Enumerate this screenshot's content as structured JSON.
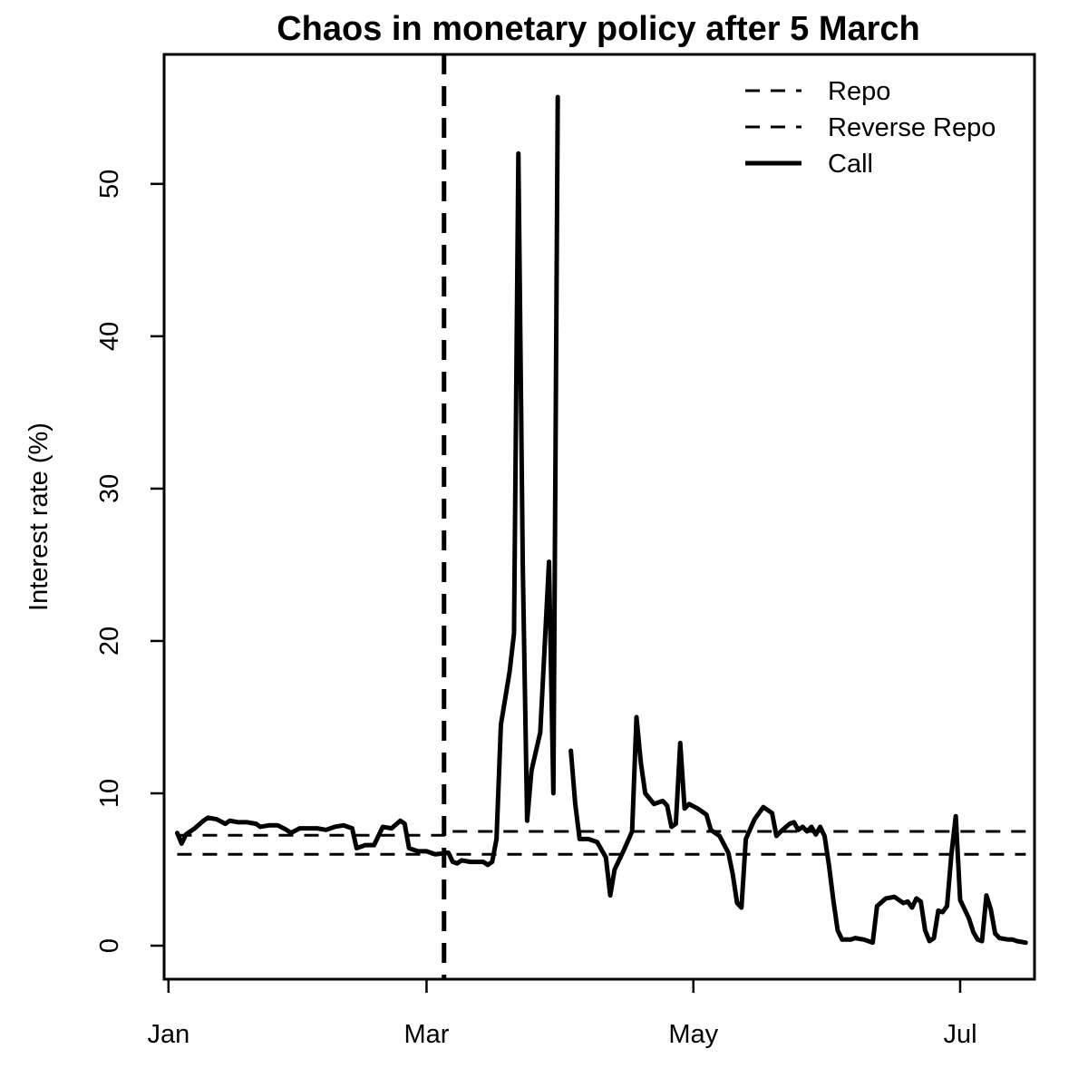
{
  "chart_data": {
    "type": "line",
    "title": "Chaos in monetary policy after 5 March",
    "xlabel": "",
    "ylabel": "Interest rate (%)",
    "x_axis_type": "date",
    "xlim": [
      "2020-12-31",
      "2021-07-18"
    ],
    "ylim": [
      -2.2,
      58.5
    ],
    "x_ticks": [
      {
        "date": "2021-01-01",
        "label": "Jan"
      },
      {
        "date": "2021-03-01",
        "label": "Mar"
      },
      {
        "date": "2021-05-01",
        "label": "May"
      },
      {
        "date": "2021-07-01",
        "label": "Jul"
      }
    ],
    "y_ticks": [
      0,
      10,
      20,
      30,
      40,
      50
    ],
    "grid": false,
    "legend_position": "top-right",
    "vline": {
      "date": "2021-03-05",
      "style": "dashed"
    },
    "series": [
      {
        "name": "Repo",
        "style": "dashed",
        "color": "#000000",
        "points": [
          [
            "2021-01-03",
            7.25
          ],
          [
            "2021-03-05",
            7.5
          ],
          [
            "2021-07-16",
            7.75
          ]
        ]
      },
      {
        "name": "Reverse Repo",
        "style": "dashed",
        "color": "#000000",
        "points": [
          [
            "2021-01-03",
            6.0
          ],
          [
            "2021-07-16",
            6.0
          ]
        ]
      },
      {
        "name": "Call",
        "style": "solid",
        "color": "#000000",
        "segments": [
          [
            [
              "2021-01-03",
              7.4
            ],
            [
              "2021-01-04",
              6.7
            ],
            [
              "2021-01-05",
              7.3
            ],
            [
              "2021-01-07",
              7.7
            ],
            [
              "2021-01-09",
              8.2
            ],
            [
              "2021-01-10",
              8.4
            ],
            [
              "2021-01-12",
              8.3
            ],
            [
              "2021-01-14",
              8.0
            ],
            [
              "2021-01-15",
              8.2
            ],
            [
              "2021-01-17",
              8.1
            ],
            [
              "2021-01-19",
              8.1
            ],
            [
              "2021-01-21",
              8.0
            ],
            [
              "2021-01-22",
              7.8
            ],
            [
              "2021-01-24",
              7.9
            ],
            [
              "2021-01-26",
              7.9
            ],
            [
              "2021-01-28",
              7.6
            ],
            [
              "2021-01-29",
              7.4
            ],
            [
              "2021-01-31",
              7.7
            ],
            [
              "2021-02-02",
              7.7
            ],
            [
              "2021-02-04",
              7.7
            ],
            [
              "2021-02-06",
              7.6
            ],
            [
              "2021-02-08",
              7.8
            ],
            [
              "2021-02-10",
              7.9
            ],
            [
              "2021-02-12",
              7.7
            ],
            [
              "2021-02-13",
              6.4
            ],
            [
              "2021-02-15",
              6.6
            ],
            [
              "2021-02-17",
              6.6
            ],
            [
              "2021-02-19",
              7.8
            ],
            [
              "2021-02-21",
              7.7
            ],
            [
              "2021-02-23",
              8.2
            ],
            [
              "2021-02-24",
              8.0
            ],
            [
              "2021-02-25",
              6.4
            ],
            [
              "2021-02-27",
              6.2
            ],
            [
              "2021-03-01",
              6.2
            ],
            [
              "2021-03-03",
              6.0
            ],
            [
              "2021-03-06",
              6.1
            ],
            [
              "2021-03-07",
              5.5
            ],
            [
              "2021-03-08",
              5.4
            ],
            [
              "2021-03-09",
              5.6
            ],
            [
              "2021-03-11",
              5.5
            ],
            [
              "2021-03-14",
              5.5
            ],
            [
              "2021-03-15",
              5.3
            ],
            [
              "2021-03-16",
              5.5
            ],
            [
              "2021-03-17",
              7.0
            ],
            [
              "2021-03-18",
              14.5
            ],
            [
              "2021-03-20",
              18.0
            ],
            [
              "2021-03-21",
              20.5
            ],
            [
              "2021-03-22",
              52.0
            ],
            [
              "2021-03-23",
              25.0
            ],
            [
              "2021-03-24",
              8.2
            ],
            [
              "2021-03-25",
              11.5
            ],
            [
              "2021-03-27",
              14.0
            ],
            [
              "2021-03-29",
              25.2
            ],
            [
              "2021-03-30",
              10.0
            ],
            [
              "2021-03-31",
              55.7
            ]
          ],
          [
            [
              "2021-04-03",
              12.8
            ],
            [
              "2021-04-04",
              9.3
            ],
            [
              "2021-04-05",
              7.0
            ],
            [
              "2021-04-07",
              7.0
            ],
            [
              "2021-04-09",
              6.8
            ],
            [
              "2021-04-11",
              5.8
            ],
            [
              "2021-04-12",
              3.3
            ],
            [
              "2021-04-13",
              5.0
            ],
            [
              "2021-04-15",
              6.2
            ],
            [
              "2021-04-17",
              7.5
            ],
            [
              "2021-04-18",
              15.0
            ],
            [
              "2021-04-19",
              12.0
            ],
            [
              "2021-04-20",
              10.0
            ],
            [
              "2021-04-22",
              9.3
            ],
            [
              "2021-04-24",
              9.5
            ],
            [
              "2021-04-25",
              9.2
            ],
            [
              "2021-04-26",
              7.8
            ],
            [
              "2021-04-27",
              8.0
            ],
            [
              "2021-04-28",
              13.3
            ],
            [
              "2021-04-29",
              9.0
            ],
            [
              "2021-04-30",
              9.3
            ],
            [
              "2021-05-02",
              9.0
            ],
            [
              "2021-05-04",
              8.6
            ],
            [
              "2021-05-05",
              7.6
            ],
            [
              "2021-05-07",
              7.2
            ],
            [
              "2021-05-09",
              6.1
            ],
            [
              "2021-05-10",
              4.7
            ],
            [
              "2021-05-11",
              2.8
            ],
            [
              "2021-05-12",
              2.5
            ],
            [
              "2021-05-13",
              7.0
            ],
            [
              "2021-05-15",
              8.3
            ],
            [
              "2021-05-17",
              9.1
            ],
            [
              "2021-05-19",
              8.7
            ],
            [
              "2021-05-20",
              7.2
            ],
            [
              "2021-05-21",
              7.5
            ],
            [
              "2021-05-23",
              8.0
            ],
            [
              "2021-05-24",
              8.1
            ],
            [
              "2021-05-25",
              7.6
            ],
            [
              "2021-05-26",
              7.8
            ],
            [
              "2021-05-27",
              7.5
            ],
            [
              "2021-05-28",
              7.8
            ],
            [
              "2021-05-29",
              7.3
            ],
            [
              "2021-05-30",
              7.8
            ],
            [
              "2021-05-31",
              7.2
            ],
            [
              "2021-06-01",
              5.3
            ],
            [
              "2021-06-02",
              3.0
            ],
            [
              "2021-06-03",
              1.0
            ],
            [
              "2021-06-04",
              0.4
            ],
            [
              "2021-06-06",
              0.4
            ],
            [
              "2021-06-07",
              0.5
            ],
            [
              "2021-06-09",
              0.4
            ],
            [
              "2021-06-11",
              0.2
            ],
            [
              "2021-06-12",
              2.6
            ],
            [
              "2021-06-14",
              3.1
            ],
            [
              "2021-06-16",
              3.2
            ],
            [
              "2021-06-18",
              2.8
            ],
            [
              "2021-06-19",
              2.9
            ],
            [
              "2021-06-20",
              2.5
            ],
            [
              "2021-06-21",
              3.1
            ],
            [
              "2021-06-22",
              2.9
            ],
            [
              "2021-06-23",
              1.0
            ],
            [
              "2021-06-24",
              0.3
            ],
            [
              "2021-06-25",
              0.5
            ],
            [
              "2021-06-26",
              2.3
            ],
            [
              "2021-06-27",
              2.2
            ],
            [
              "2021-06-28",
              2.6
            ],
            [
              "2021-06-29",
              6.0
            ],
            [
              "2021-06-30",
              8.5
            ],
            [
              "2021-07-01",
              3.0
            ],
            [
              "2021-07-02",
              2.4
            ],
            [
              "2021-07-03",
              1.8
            ],
            [
              "2021-07-04",
              0.9
            ],
            [
              "2021-07-05",
              0.4
            ],
            [
              "2021-07-06",
              0.3
            ],
            [
              "2021-07-07",
              3.3
            ],
            [
              "2021-07-08",
              2.4
            ],
            [
              "2021-07-09",
              0.8
            ],
            [
              "2021-07-10",
              0.5
            ],
            [
              "2021-07-12",
              0.4
            ],
            [
              "2021-07-13",
              0.4
            ],
            [
              "2021-07-14",
              0.3
            ],
            [
              "2021-07-16",
              0.2
            ]
          ]
        ]
      }
    ]
  }
}
